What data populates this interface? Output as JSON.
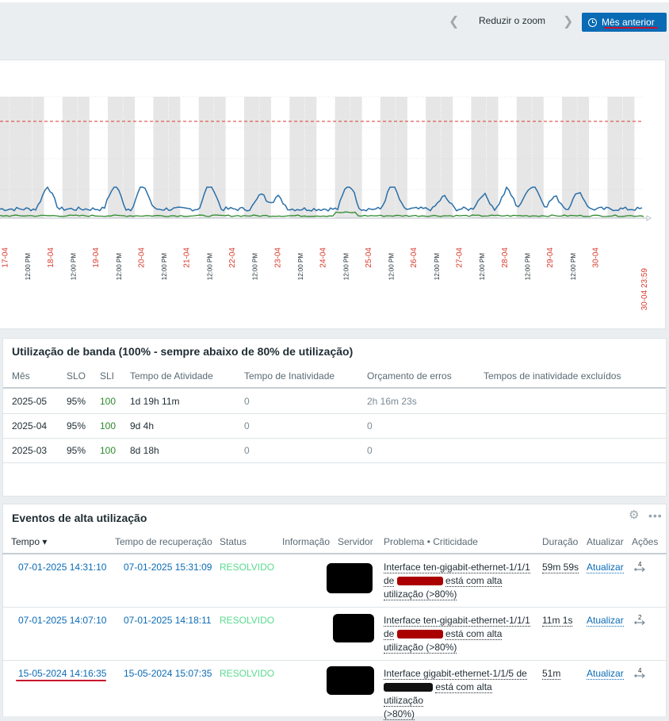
{
  "toolbar": {
    "zoom_out_label": "Reduzir o zoom",
    "prev_month_label": "Mês anterior"
  },
  "graph": {
    "date_labels": [
      "17-04",
      "18-04",
      "19-04",
      "20-04",
      "21-04",
      "22-04",
      "23-04",
      "24-04",
      "25-04",
      "26-04",
      "27-04",
      "28-04",
      "29-04",
      "30-04",
      "30-04 23:59"
    ],
    "noon_label": "12:00 PM",
    "colors": {
      "series_main": "#2a6fa8",
      "series_secondary": "#2e8a2e",
      "threshold": "#d9382b",
      "date_label": "#d9382b"
    }
  },
  "slo_panel": {
    "title": "Utilização de banda (100% - sempre abaixo de 80% de utilização)",
    "columns": [
      "Mês",
      "SLO",
      "SLI",
      "Tempo de Atividade",
      "Tempo de Inatividade",
      "Orçamento de erros",
      "Tempos de inatividade excluídos"
    ],
    "rows": [
      {
        "month": "2025-05",
        "slo": "95%",
        "sli": "100",
        "uptime": "1d 19h 11m",
        "downtime": "0",
        "budget": "2h 16m 23s"
      },
      {
        "month": "2025-04",
        "slo": "95%",
        "sli": "100",
        "uptime": "9d 4h",
        "downtime": "0",
        "budget": "0"
      },
      {
        "month": "2025-03",
        "slo": "95%",
        "sli": "100",
        "uptime": "8d 18h",
        "downtime": "0",
        "budget": "0"
      }
    ]
  },
  "events_panel": {
    "title": "Eventos de alta utilização",
    "columns": {
      "time": "Tempo ▾",
      "recovery": "Tempo de recuperação",
      "status": "Status",
      "info": "Informação",
      "host": "Servidor",
      "problem": "Problema • Criticidade",
      "duration": "Duração",
      "update": "Atualizar",
      "actions": "Ações"
    },
    "rows": [
      {
        "time": "07-01-2025 14:31:10",
        "recovery": "07-01-2025 15:31:09",
        "status": "RESOLVIDO",
        "problem_a": "Interface ten-gigabit-ethernet-1/1/1",
        "problem_b": "de",
        "problem_c": "está com alta",
        "problem_d": "utilização (>80%)",
        "duration": "59m 59s",
        "update": "Atualizar",
        "actions_count": "4"
      },
      {
        "time": "07-01-2025 14:07:10",
        "recovery": "07-01-2025 14:18:11",
        "status": "RESOLVIDO",
        "problem_a": "Interface ten-gigabit-ethernet-1/1/1",
        "problem_b": "de",
        "problem_c": "está com alta",
        "problem_d": "utilização (>80%)",
        "duration": "11m 1s",
        "update": "Atualizar",
        "actions_count": "2"
      },
      {
        "time": "15-05-2024 14:16:35",
        "recovery": "15-05-2024 15:07:35",
        "status": "RESOLVIDO",
        "problem_a": "Interface gigabit-ethernet-1/1/5 de",
        "problem_b": "",
        "problem_c": "está com alta utilização",
        "problem_d": "(>80%)",
        "duration": "51m",
        "update": "Atualizar",
        "actions_count": "4"
      }
    ]
  }
}
